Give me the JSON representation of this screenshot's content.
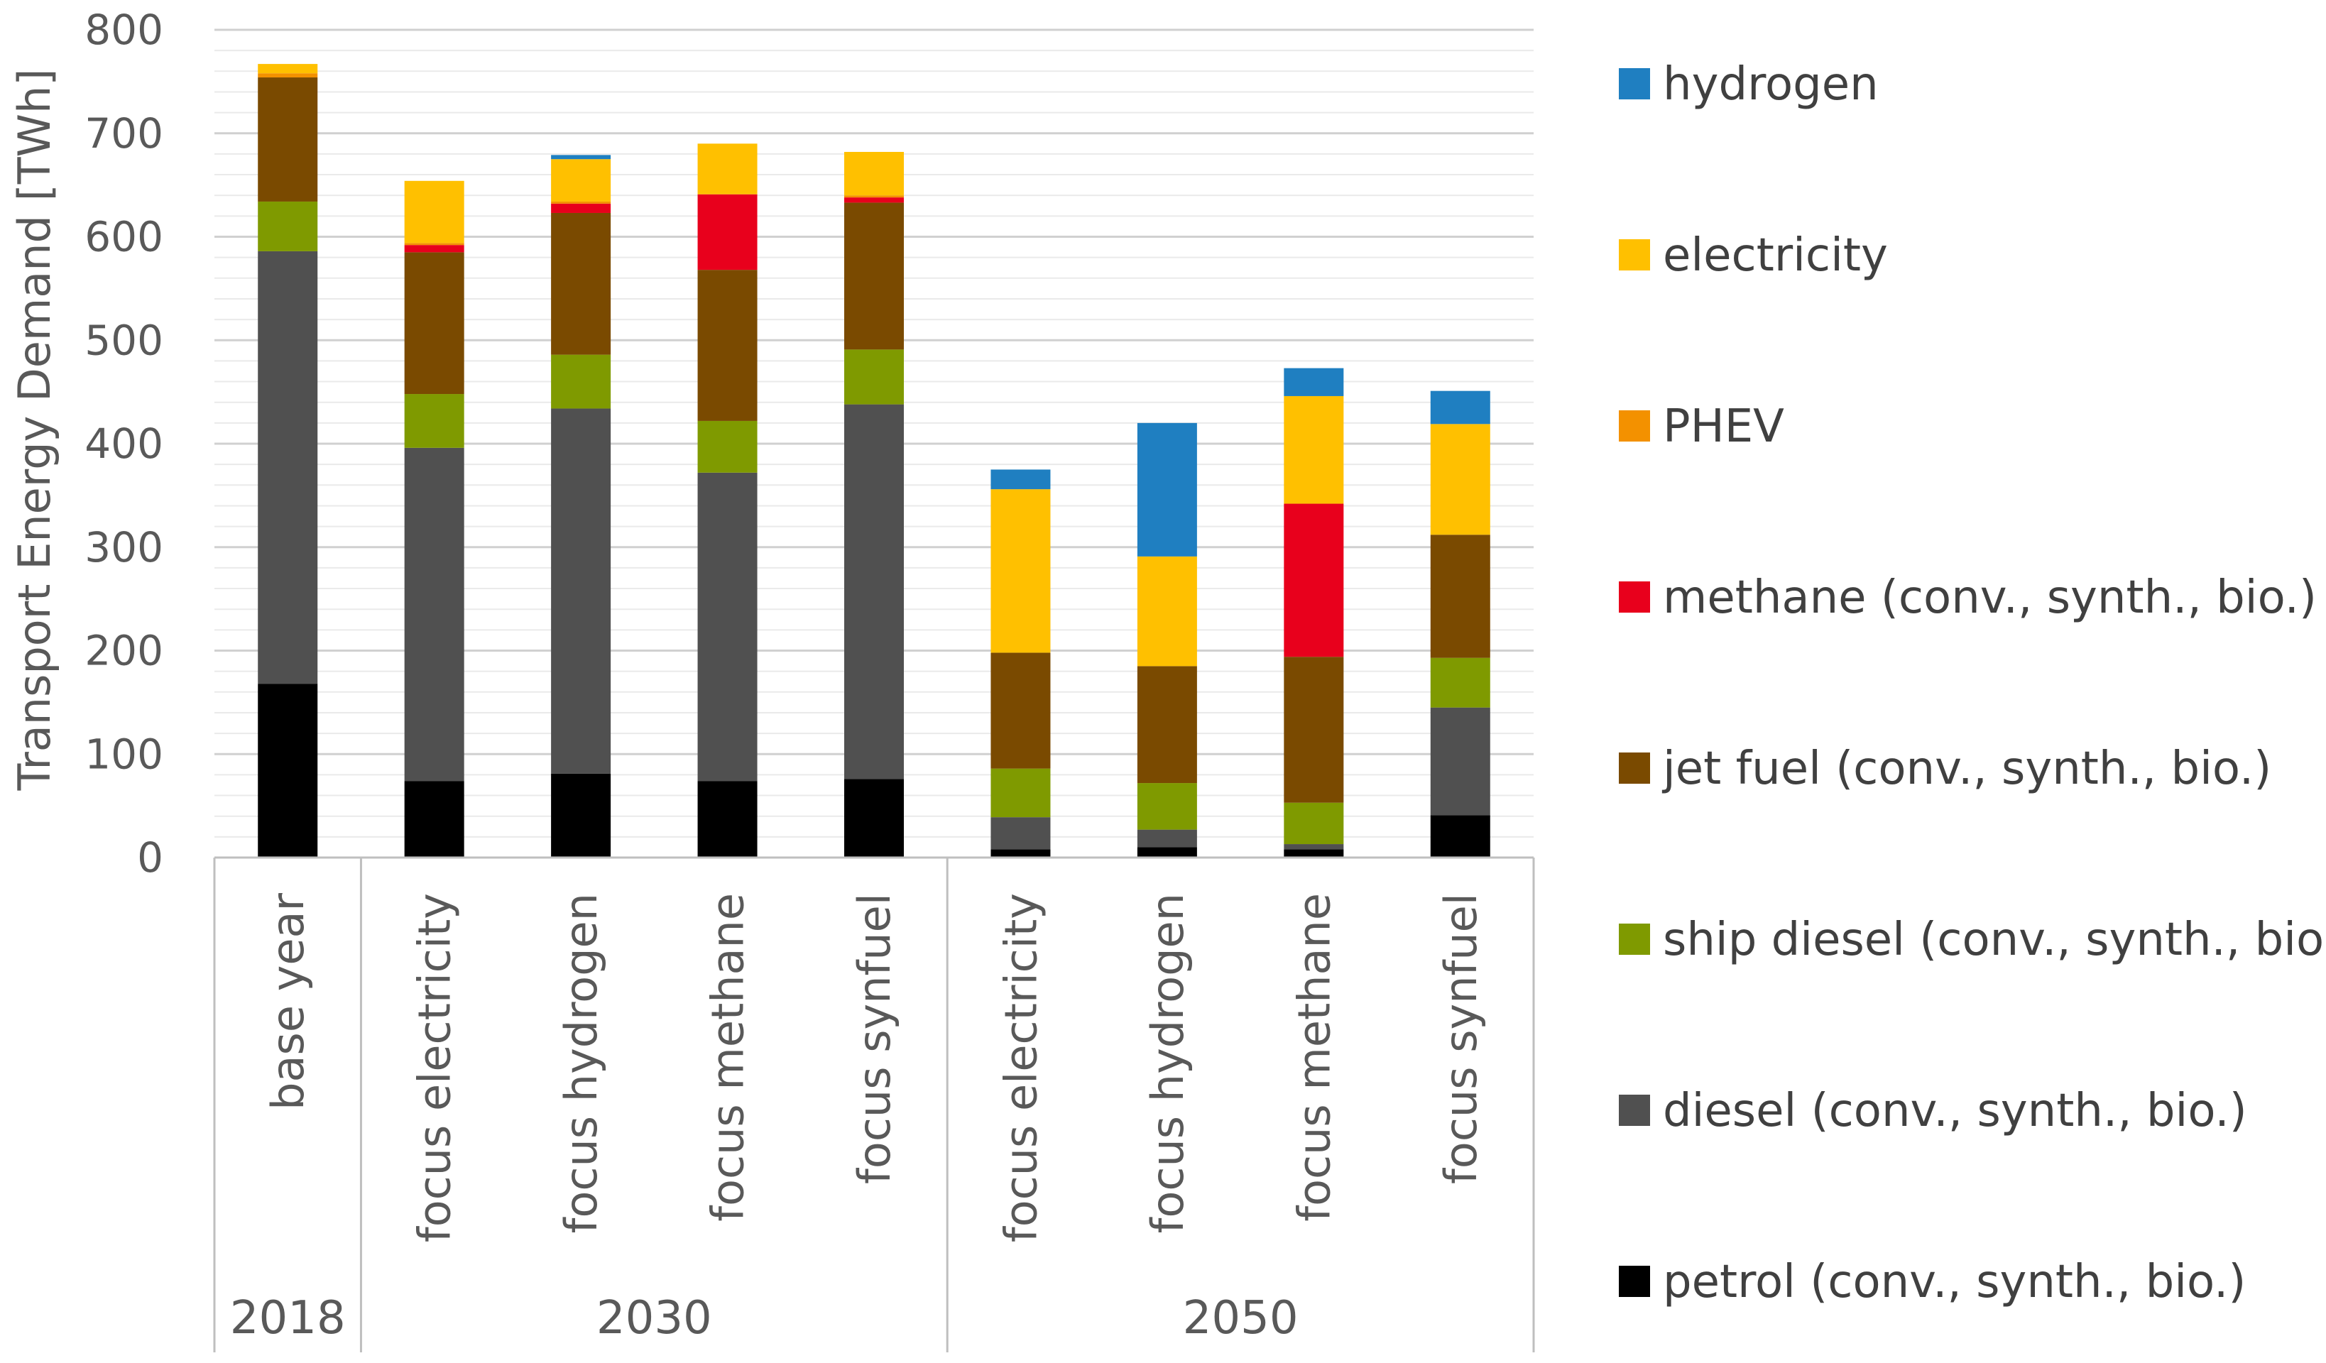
{
  "chart_data": {
    "type": "bar",
    "stacked": true,
    "title": "",
    "ylabel": "Transport Energy Demand [TWh]",
    "xlabel": "",
    "ylim": [
      0,
      800
    ],
    "yticks": [
      "0",
      "100",
      "200",
      "300",
      "400",
      "500",
      "600",
      "700",
      "800"
    ],
    "grid": true,
    "legend_position": "right",
    "groups": [
      {
        "label": "2018",
        "categories": [
          "base year"
        ]
      },
      {
        "label": "2030",
        "categories": [
          "focus electricity",
          "focus hydrogen",
          "focus methane",
          "focus synfuel"
        ]
      },
      {
        "label": "2050",
        "categories": [
          "focus electricity",
          "focus hydrogen",
          "focus methane",
          "focus synfuel"
        ]
      }
    ],
    "categories": [
      "base year",
      "focus electricity",
      "focus hydrogen",
      "focus methane",
      "focus synfuel",
      "focus electricity",
      "focus hydrogen",
      "focus methane",
      "focus synfuel"
    ],
    "series": [
      {
        "name": "petrol (conv., synth., bio.)",
        "color": "#000000",
        "values": [
          168,
          74,
          81,
          74,
          76,
          8,
          10,
          8,
          41
        ]
      },
      {
        "name": "diesel (conv., synth., bio.)",
        "color": "#505050",
        "values": [
          418,
          322,
          353,
          298,
          362,
          31,
          17,
          5,
          104
        ]
      },
      {
        "name": "ship diesel (conv., synth., bio.)",
        "color": "#7F9A00",
        "values": [
          48,
          52,
          52,
          50,
          53,
          47,
          45,
          40,
          48
        ]
      },
      {
        "name": "jet fuel (conv., synth., bio.)",
        "color": "#7A4A00",
        "values": [
          120,
          137,
          137,
          146,
          142,
          112,
          113,
          141,
          119
        ]
      },
      {
        "name": "methane (conv., synth., bio.)",
        "color": "#E8001C",
        "values": [
          0,
          7,
          9,
          73,
          5,
          0,
          0,
          148,
          0
        ]
      },
      {
        "name": "PHEV",
        "color": "#F39100",
        "values": [
          4,
          2,
          2,
          0,
          2,
          0,
          0,
          0,
          0
        ]
      },
      {
        "name": "electricity",
        "color": "#FFC000",
        "values": [
          9,
          60,
          41,
          49,
          42,
          158,
          106,
          104,
          107
        ]
      },
      {
        "name": "hydrogen",
        "color": "#1F7FC1",
        "values": [
          0,
          0,
          4,
          0,
          0,
          19,
          129,
          27,
          32
        ]
      }
    ],
    "legend_order": [
      "hydrogen",
      "electricity",
      "PHEV",
      "methane (conv., synth., bio.)",
      "jet fuel (conv., synth., bio.)",
      "ship diesel (conv., synth., bio.)",
      "diesel (conv., synth., bio.)",
      "petrol (conv., synth., bio.)"
    ]
  }
}
